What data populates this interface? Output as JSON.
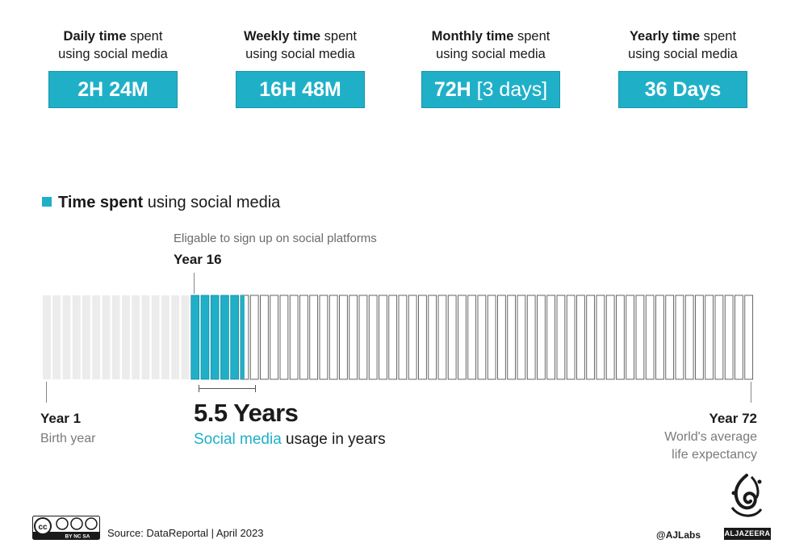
{
  "stats": [
    {
      "bold": "Daily time",
      "rest": " spent",
      "line2": "using social media",
      "value": "2H 24M",
      "extra": ""
    },
    {
      "bold": "Weekly time",
      "rest": " spent",
      "line2": "using social media",
      "value": "16H 48M",
      "extra": ""
    },
    {
      "bold": "Monthly time",
      "rest": " spent",
      "line2": "using social media",
      "value": "72H",
      "extra": " [3 days]"
    },
    {
      "bold": "Yearly time",
      "rest": " spent",
      "line2": "using social media",
      "value": "36 Days",
      "extra": ""
    }
  ],
  "legend": {
    "bold": "Time spent",
    "rest": " using social media"
  },
  "timeline": {
    "total_years": 72,
    "pre_eligible_years": 15,
    "social_media_years": 5.5,
    "eligible_label": "Eligable to sign up on social platforms",
    "eligible_year": "Year 16",
    "start_year": "Year 1",
    "start_desc": "Birth year",
    "end_year": "Year 72",
    "end_desc_line1": "World's average",
    "end_desc_line2": "life expectancy"
  },
  "usage": {
    "years": "5.5 Years",
    "highlight": "Social media",
    "rest": " usage in years"
  },
  "footer": {
    "license": "BY NC SA",
    "source": "Source: DataReportal | April 2023",
    "handle": "@AJLabs",
    "brand": "ALJAZEERA"
  },
  "colors": {
    "accent": "#1fb0c8",
    "pre": "#ececec",
    "outline": "#555555"
  }
}
